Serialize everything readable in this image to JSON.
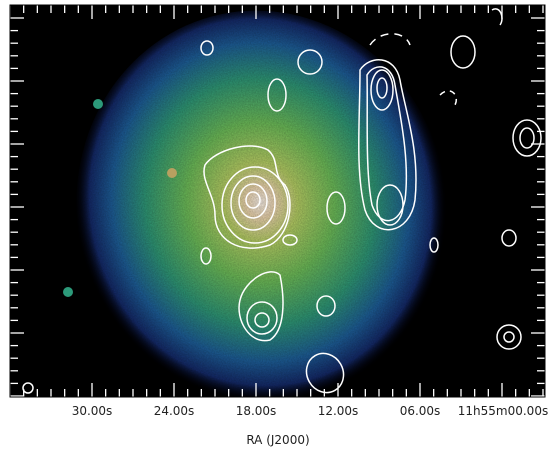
{
  "figure": {
    "xaxis": {
      "ticks": [
        "30.00s",
        "24.00s",
        "18.00s",
        "12.00s",
        "06.00s",
        "11h55m00.00s"
      ],
      "label": "RA (J2000)"
    }
  }
}
